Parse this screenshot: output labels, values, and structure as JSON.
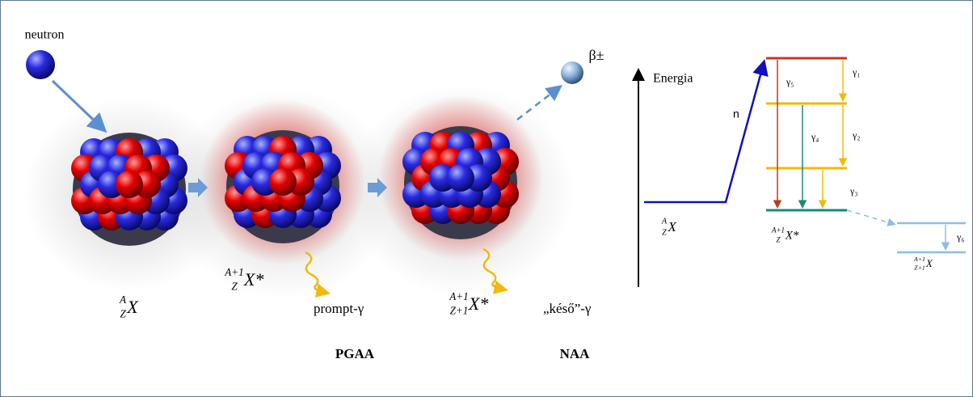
{
  "labels": {
    "neutron": "neutron",
    "beta": "β±",
    "energy_axis": "Energia",
    "neutron_capture": "n",
    "prompt_gamma": "prompt-γ",
    "delayed_gamma": "„késő”-γ",
    "pgaa": "PGAA",
    "naa": "NAA"
  },
  "nuclides": [
    {
      "mass": "A",
      "atomic": "Z",
      "symbol": "X"
    },
    {
      "mass": "A+1",
      "atomic": "Z",
      "symbol": "X*"
    },
    {
      "mass": "A+1",
      "atomic": "Z+1",
      "symbol": "X*"
    }
  ],
  "level_labels": [
    {
      "mass": "A",
      "atomic": "Z",
      "symbol": "X"
    },
    {
      "mass": "A+1",
      "atomic": "Z",
      "symbol": "X*"
    },
    {
      "mass": "A+1",
      "atomic": "Z+1",
      "symbol": "X"
    }
  ],
  "transitions": [
    "γ₁",
    "γ₂",
    "γ₃",
    "γ₄",
    "γ₅",
    "γ₆"
  ]
}
